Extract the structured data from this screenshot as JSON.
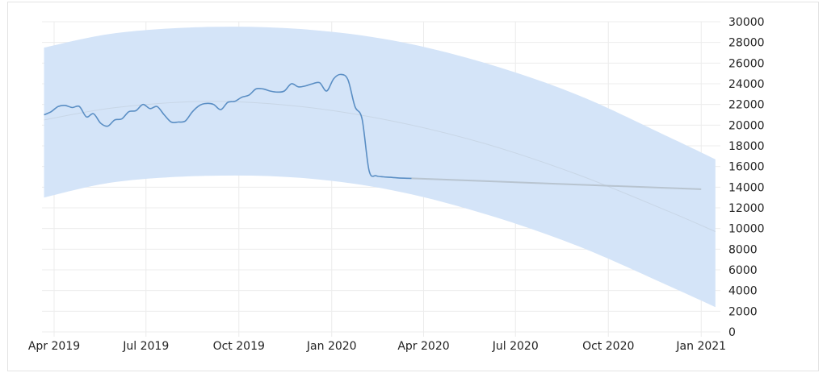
{
  "chart_data": {
    "type": "line",
    "title": "",
    "xlabel": "",
    "ylabel": "",
    "x_tick_labels": [
      "Apr 2019",
      "Jul 2019",
      "Oct 2019",
      "Jan 2020",
      "Apr 2020",
      "Jul 2020",
      "Oct 2020",
      "Jan 2021"
    ],
    "y_tick_labels": [
      "0",
      "2000",
      "4000",
      "6000",
      "8000",
      "10000",
      "12000",
      "14000",
      "16000",
      "18000",
      "20000",
      "22000",
      "24000",
      "26000",
      "28000",
      "30000"
    ],
    "ylim": [
      0,
      30000
    ],
    "xlim": [
      "2019-03-20",
      "2021-01-20"
    ],
    "grid": true,
    "colors": {
      "series": "#5a8ec4",
      "band": "#d4e4f8",
      "trend": "#c8d6e6",
      "forecast": "#b8c4d0",
      "grid": "#ececec"
    },
    "series": [
      {
        "x": [
          "2019-03-22",
          "2019-03-29",
          "2019-04-05",
          "2019-04-12",
          "2019-04-19",
          "2019-04-26",
          "2019-05-03",
          "2019-05-10",
          "2019-05-17",
          "2019-05-24",
          "2019-05-31",
          "2019-06-07",
          "2019-06-14",
          "2019-06-21",
          "2019-06-28",
          "2019-07-05",
          "2019-07-12",
          "2019-07-19",
          "2019-07-26",
          "2019-08-02",
          "2019-08-09",
          "2019-08-16",
          "2019-08-23",
          "2019-08-30",
          "2019-09-06",
          "2019-09-13",
          "2019-09-20",
          "2019-09-27",
          "2019-10-04",
          "2019-10-11",
          "2019-10-18",
          "2019-10-25",
          "2019-11-01",
          "2019-11-08",
          "2019-11-15",
          "2019-11-22",
          "2019-11-29",
          "2019-12-06",
          "2019-12-13",
          "2019-12-20",
          "2019-12-27",
          "2020-01-03",
          "2020-01-10",
          "2020-01-17",
          "2020-01-24",
          "2020-01-31",
          "2020-02-07",
          "2020-02-14",
          "2020-02-21",
          "2020-02-28",
          "2020-03-06",
          "2020-03-13",
          "2020-03-20"
        ],
        "values": [
          21000,
          21300,
          21800,
          21900,
          21700,
          21800,
          20800,
          21100,
          20200,
          19900,
          20500,
          20600,
          21300,
          21400,
          22000,
          21600,
          21800,
          21000,
          20300,
          20300,
          20400,
          21300,
          21900,
          22100,
          22000,
          21500,
          22200,
          22300,
          22700,
          22900,
          23500,
          23500,
          23300,
          23200,
          23300,
          24000,
          23700,
          23800,
          24000,
          24100,
          23300,
          24500,
          24900,
          24400,
          21800,
          20600,
          15600,
          15100,
          15000,
          14950,
          14900,
          14870,
          14850
        ]
      },
      {
        "x": [
          "2020-03-20",
          "2021-01-01"
        ],
        "values": [
          14850,
          13800
        ]
      }
    ],
    "trend": {
      "x": [
        "2019-03-22",
        "2019-06-01",
        "2019-09-01",
        "2019-12-01",
        "2020-03-01",
        "2020-06-01",
        "2020-09-01",
        "2020-12-01",
        "2021-01-15"
      ],
      "values": [
        20500,
        21700,
        22300,
        21800,
        20400,
        18200,
        15200,
        11600,
        9700
      ]
    },
    "band": {
      "x": [
        "2019-03-22",
        "2019-06-01",
        "2019-09-01",
        "2019-12-01",
        "2020-03-01",
        "2020-06-01",
        "2020-09-01",
        "2020-12-01",
        "2021-01-15"
      ],
      "upper": [
        27500,
        28900,
        29500,
        29300,
        28200,
        26000,
        22900,
        18800,
        16700
      ],
      "lower": [
        13000,
        14500,
        15100,
        14900,
        13700,
        11400,
        8300,
        4400,
        2400
      ]
    }
  }
}
